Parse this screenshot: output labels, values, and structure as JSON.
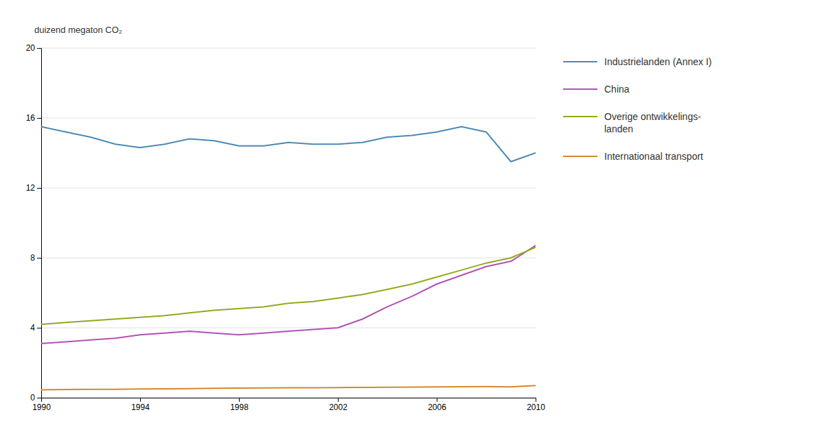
{
  "chart_data": {
    "type": "line",
    "ylabel": "duizend megaton CO₂",
    "x": [
      1990,
      1991,
      1992,
      1993,
      1994,
      1995,
      1996,
      1997,
      1998,
      1999,
      2000,
      2001,
      2002,
      2003,
      2004,
      2005,
      2006,
      2007,
      2008,
      2009,
      2010
    ],
    "series": [
      {
        "name": "Industrielanden (Annex I)",
        "color": "#4a8ab5",
        "values": [
          15.5,
          15.2,
          14.9,
          14.5,
          14.3,
          14.5,
          14.8,
          14.7,
          14.4,
          14.4,
          14.6,
          14.5,
          14.5,
          14.6,
          14.9,
          15.0,
          15.2,
          15.5,
          15.2,
          13.5,
          14.0
        ]
      },
      {
        "name": "China",
        "color": "#b050b5",
        "values": [
          3.1,
          3.2,
          3.3,
          3.4,
          3.6,
          3.7,
          3.8,
          3.7,
          3.6,
          3.7,
          3.8,
          3.9,
          4.0,
          4.5,
          5.2,
          5.8,
          6.5,
          7.0,
          7.5,
          7.8,
          8.7
        ]
      },
      {
        "name": "Overige ontwikkelings-\nlanden",
        "color": "#8faa1e",
        "values": [
          4.2,
          4.3,
          4.4,
          4.5,
          4.6,
          4.7,
          4.85,
          5.0,
          5.1,
          5.2,
          5.4,
          5.5,
          5.7,
          5.9,
          6.2,
          6.5,
          6.9,
          7.3,
          7.7,
          8.0,
          8.6
        ]
      },
      {
        "name": "Internationaal transport",
        "color": "#d4882a",
        "values": [
          0.45,
          0.47,
          0.48,
          0.48,
          0.5,
          0.51,
          0.52,
          0.54,
          0.55,
          0.56,
          0.57,
          0.57,
          0.58,
          0.59,
          0.6,
          0.61,
          0.62,
          0.63,
          0.64,
          0.62,
          0.7
        ]
      }
    ],
    "xlim": [
      1990,
      2010
    ],
    "xticks": [
      1990,
      1994,
      1998,
      2002,
      2006,
      2010
    ],
    "ylim": [
      0,
      20
    ],
    "yticks": [
      0,
      4,
      8,
      12,
      16,
      20
    ],
    "grid": true,
    "legend": "right"
  }
}
